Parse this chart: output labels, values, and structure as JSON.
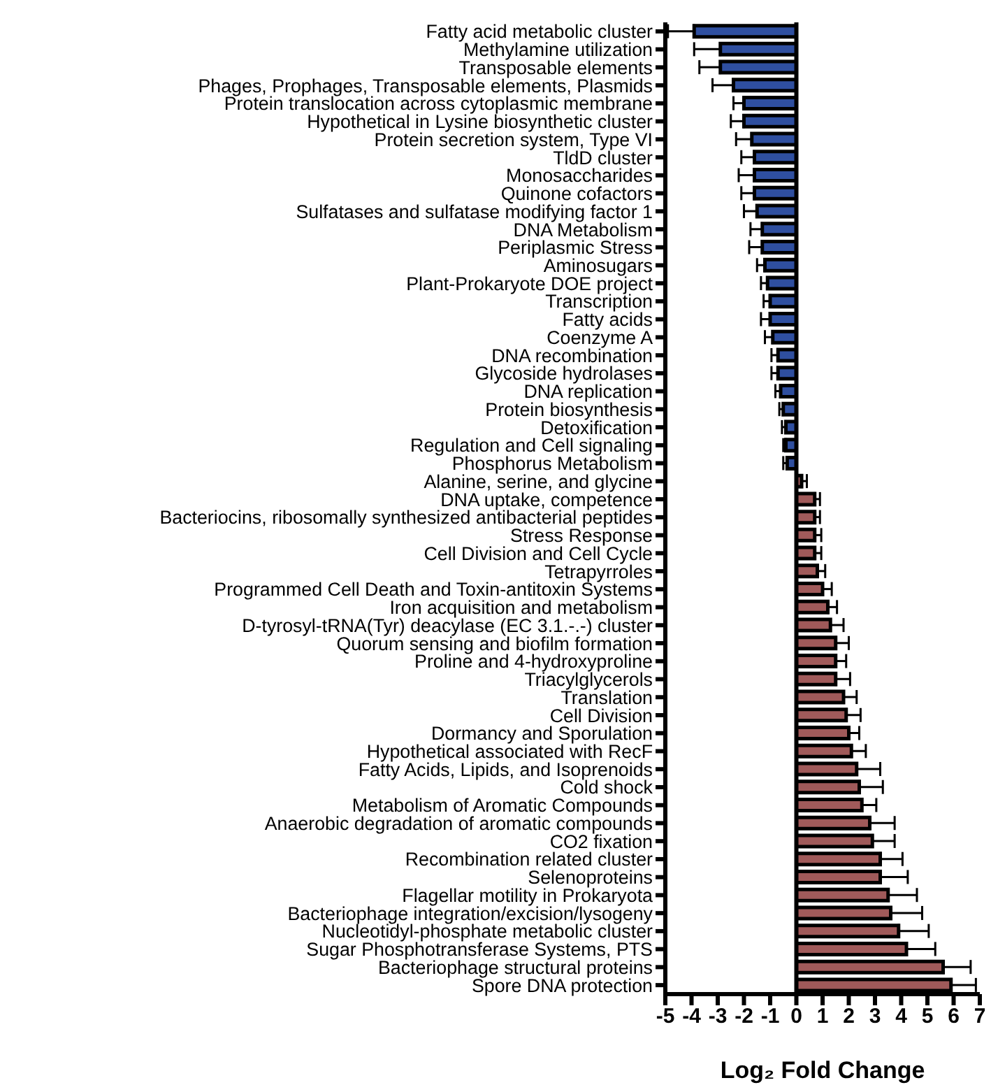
{
  "chart_data": {
    "type": "bar",
    "orientation": "horizontal",
    "xlabel": "Log₂ Fold Change",
    "categories": [
      "Fatty acid metabolic cluster",
      "Methylamine utilization",
      "Transposable elements",
      "Phages, Prophages, Transposable elements, Plasmids",
      "Protein translocation across cytoplasmic membrane",
      "Hypothetical in Lysine biosynthetic cluster",
      "Protein secretion system, Type VI",
      "TldD cluster",
      "Monosaccharides",
      "Quinone cofactors",
      "Sulfatases and sulfatase modifying factor 1",
      "DNA Metabolism",
      "Periplasmic Stress",
      "Aminosugars",
      "Plant-Prokaryote DOE project",
      "Transcription",
      "Fatty acids",
      "Coenzyme A",
      "DNA recombination",
      "Glycoside hydrolases",
      "DNA replication",
      "Protein biosynthesis",
      "Detoxification",
      "Regulation and Cell signaling",
      "Phosphorus Metabolism",
      "Alanine, serine, and glycine",
      "DNA uptake, competence",
      "Bacteriocins, ribosomally synthesized antibacterial peptides",
      "Stress Response",
      "Cell Division and Cell Cycle",
      "Tetrapyrroles",
      "Programmed Cell Death and Toxin-antitoxin Systems",
      "Iron acquisition and metabolism",
      "D-tyrosyl-tRNA(Tyr) deacylase (EC 3.1.-.-) cluster",
      "Quorum sensing and biofilm formation",
      "Proline and 4-hydroxyproline",
      "Triacylglycerols",
      "Translation",
      "Cell Division",
      "Dormancy and Sporulation",
      "Hypothetical associated with RecF",
      "Fatty Acids, Lipids, and Isoprenoids",
      "Cold shock",
      "Metabolism of Aromatic Compounds",
      "Anaerobic degradation of aromatic compounds",
      "CO2 fixation",
      "Recombination related cluster",
      "Selenoproteins",
      "Flagellar motility in Prokaryota",
      "Bacteriophage integration/excision/lysogeny",
      "Nucleotidyl-phosphate metabolic cluster",
      "Sugar Phosphotransferase Systems, PTS",
      "Bacteriophage structural proteins",
      "Spore DNA protection"
    ],
    "values": [
      -3.9,
      -2.9,
      -2.9,
      -2.4,
      -2.0,
      -2.0,
      -1.7,
      -1.6,
      -1.6,
      -1.6,
      -1.5,
      -1.3,
      -1.3,
      -1.2,
      -1.1,
      -1.0,
      -1.0,
      -0.9,
      -0.7,
      -0.7,
      -0.6,
      -0.5,
      -0.4,
      -0.4,
      -0.35,
      0.2,
      0.7,
      0.7,
      0.7,
      0.7,
      0.8,
      1.0,
      1.2,
      1.3,
      1.5,
      1.5,
      1.5,
      1.8,
      1.9,
      2.0,
      2.1,
      2.3,
      2.4,
      2.5,
      2.8,
      2.9,
      3.2,
      3.2,
      3.5,
      3.6,
      3.9,
      4.2,
      5.6,
      5.9
    ],
    "errors": [
      [
        -4.9,
        -3.9
      ],
      [
        -3.9,
        -2.9
      ],
      [
        -3.7,
        -2.9
      ],
      [
        -3.2,
        -2.4
      ],
      [
        -2.4,
        -2.0
      ],
      [
        -2.5,
        -2.0
      ],
      [
        -2.3,
        -1.7
      ],
      [
        -2.1,
        -1.6
      ],
      [
        -2.2,
        -1.6
      ],
      [
        -2.1,
        -1.6
      ],
      [
        -2.0,
        -1.5
      ],
      [
        -1.75,
        -1.3
      ],
      [
        -1.8,
        -1.3
      ],
      [
        -1.5,
        -1.2
      ],
      [
        -1.35,
        -1.1
      ],
      [
        -1.25,
        -1.0
      ],
      [
        -1.35,
        -1.0
      ],
      [
        -1.2,
        -0.9
      ],
      [
        -0.95,
        -0.7
      ],
      [
        -0.95,
        -0.7
      ],
      [
        -0.8,
        -0.6
      ],
      [
        -0.65,
        -0.5
      ],
      [
        -0.55,
        -0.4
      ],
      [
        -0.5,
        -0.4
      ],
      [
        -0.5,
        -0.35
      ],
      [
        0.2,
        0.4
      ],
      [
        0.7,
        0.9
      ],
      [
        0.7,
        0.9
      ],
      [
        0.7,
        0.95
      ],
      [
        0.7,
        0.95
      ],
      [
        0.8,
        1.1
      ],
      [
        1.0,
        1.35
      ],
      [
        1.2,
        1.55
      ],
      [
        1.3,
        1.8
      ],
      [
        1.5,
        2.0
      ],
      [
        1.5,
        1.9
      ],
      [
        1.5,
        2.05
      ],
      [
        1.8,
        2.3
      ],
      [
        1.9,
        2.45
      ],
      [
        2.0,
        2.4
      ],
      [
        2.1,
        2.65
      ],
      [
        2.3,
        3.2
      ],
      [
        2.4,
        3.3
      ],
      [
        2.5,
        3.05
      ],
      [
        2.8,
        3.75
      ],
      [
        2.9,
        3.75
      ],
      [
        3.2,
        4.05
      ],
      [
        3.2,
        4.25
      ],
      [
        3.5,
        4.6
      ],
      [
        3.6,
        4.8
      ],
      [
        3.9,
        5.05
      ],
      [
        4.2,
        5.3
      ],
      [
        5.6,
        6.65
      ],
      [
        5.9,
        6.85
      ]
    ],
    "ref_lines": [
      {
        "axis": "x",
        "value": 0,
        "color": "#000000"
      }
    ],
    "colors": [
      "#2f4fa0",
      "#2f4fa0",
      "#2f4fa0",
      "#2f4fa0",
      "#2f4fa0",
      "#2f4fa0",
      "#2f4fa0",
      "#2f4fa0",
      "#2f4fa0",
      "#2f4fa0",
      "#2f4fa0",
      "#2f4fa0",
      "#2f4fa0",
      "#2f4fa0",
      "#2f4fa0",
      "#2f4fa0",
      "#2f4fa0",
      "#2f4fa0",
      "#2f4fa0",
      "#2f4fa0",
      "#2f4fa0",
      "#2f4fa0",
      "#2f4fa0",
      "#2f4fa0",
      "#2f4fa0",
      "#a05a5a",
      "#a05a5a",
      "#a05a5a",
      "#a05a5a",
      "#a05a5a",
      "#a05a5a",
      "#a05a5a",
      "#a05a5a",
      "#a05a5a",
      "#a05a5a",
      "#a05a5a",
      "#a05a5a",
      "#a05a5a",
      "#a05a5a",
      "#a05a5a",
      "#a05a5a",
      "#a05a5a",
      "#a05a5a",
      "#a05a5a",
      "#a05a5a",
      "#a05a5a",
      "#a05a5a",
      "#a05a5a",
      "#a05a5a",
      "#a05a5a",
      "#a05a5a",
      "#a05a5a",
      "#a05a5a",
      "#a05a5a"
    ],
    "xlim": [
      -5,
      7
    ],
    "xticks": [
      -5,
      -4,
      -3,
      -2,
      -1,
      0,
      1,
      2,
      3,
      4,
      5,
      6,
      7
    ],
    "grid": false,
    "legend": false
  }
}
